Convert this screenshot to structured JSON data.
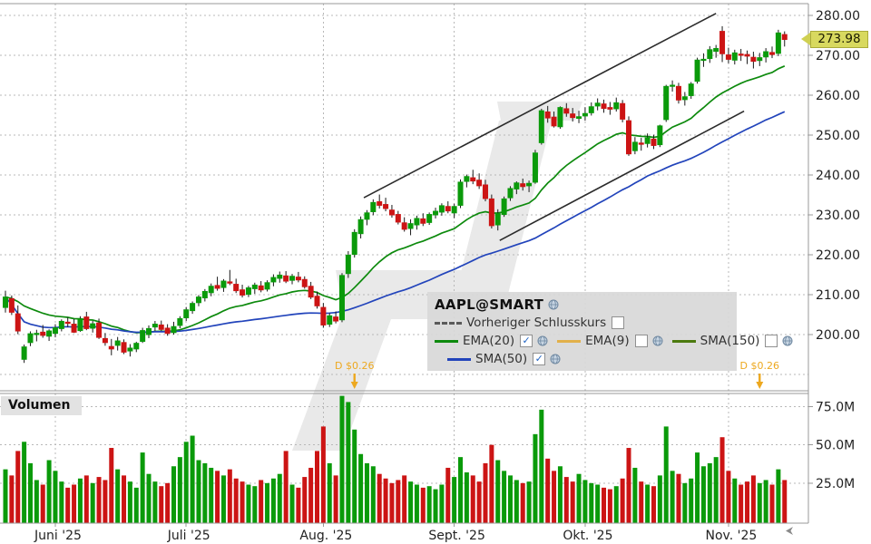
{
  "meta": {
    "symbol_title": "AAPL@SMART",
    "last_price_label": "273.98",
    "volume_panel_label": "Volumen"
  },
  "legend": {
    "title": "AAPL@SMART",
    "items": [
      {
        "label": "Vorheriger Schlusskurs",
        "checked": false,
        "color": "#5a5a5a",
        "style": "dashed"
      },
      {
        "label": "EMA(20)",
        "checked": true,
        "color": "#0d8a0d",
        "style": "solid"
      },
      {
        "label": "EMA(9)",
        "checked": false,
        "color": "#e2b04a",
        "style": "solid"
      },
      {
        "label": "SMA(150)",
        "checked": false,
        "color": "#4c7a0f",
        "style": "solid"
      },
      {
        "label": "SMA(50)",
        "checked": true,
        "color": "#2244bb",
        "style": "solid"
      }
    ]
  },
  "icons": {
    "legend_globe": "globe-icon",
    "bottom_right": "cursor-arrow-icon",
    "dividend": "down-arrow-icon"
  },
  "chart_data": {
    "type": "candlestick+volume",
    "title": "AAPL@SMART",
    "last_price": 273.98,
    "price_axis": {
      "min": 190,
      "max": 281,
      "grid": [
        190,
        200,
        210,
        220,
        230,
        240,
        250,
        260,
        270,
        280
      ],
      "labels": [
        200,
        210,
        220,
        230,
        240,
        250,
        260,
        270,
        280
      ],
      "format": "0.00"
    },
    "volume_axis": {
      "ticks_millions": [
        25,
        50,
        75
      ],
      "format": "0.0M"
    },
    "months": [
      {
        "label": "Juni '25",
        "day_index": 8
      },
      {
        "label": "Juli '25",
        "day_index": 29
      },
      {
        "label": "Aug. '25",
        "day_index": 51
      },
      {
        "label": "Sept. '25",
        "day_index": 72
      },
      {
        "label": "Okt. '25",
        "day_index": 93
      },
      {
        "label": "Nov. '25",
        "day_index": 116
      }
    ],
    "overlays": [
      {
        "name": "EMA(20)",
        "period": 20,
        "kind": "ema",
        "color": "#0d8a0d",
        "visible": true
      },
      {
        "name": "SMA(50)",
        "period": 50,
        "kind": "sma",
        "color": "#2244bb",
        "visible": true
      }
    ],
    "trendlines": [
      {
        "from": [
          57.5,
          234.3
        ],
        "to": [
          114.0,
          280.5
        ]
      },
      {
        "from": [
          79.3,
          223.6
        ],
        "to": [
          118.5,
          256.0
        ]
      }
    ],
    "dividends": [
      {
        "day_index": 56,
        "label": "D $0.26"
      },
      {
        "day_index": 121,
        "label": "D $0.26"
      }
    ],
    "colors": {
      "up": "#0a9a0a",
      "down": "#cc1414",
      "wick": "#1a1a1a",
      "trend": "#2b2b2b",
      "grid": "#b8b8b8",
      "border": "#999999",
      "dividend": "#eda81f",
      "watermark": "#e9e9e9",
      "axis_text": "#222222"
    },
    "candles_ohlcv": [
      [
        206.8,
        211.0,
        205.5,
        209.4,
        34
      ],
      [
        209.0,
        209.8,
        204.9,
        205.6,
        30
      ],
      [
        205.2,
        207.3,
        200.1,
        200.9,
        46
      ],
      [
        193.8,
        197.5,
        192.9,
        196.9,
        52
      ],
      [
        198.0,
        200.8,
        197.1,
        200.2,
        38
      ],
      [
        200.0,
        201.2,
        198.3,
        200.3,
        27
      ],
      [
        200.6,
        202.4,
        199.2,
        199.8,
        24
      ],
      [
        199.6,
        201.3,
        198.4,
        200.9,
        40
      ],
      [
        200.3,
        202.6,
        199.3,
        201.7,
        33
      ],
      [
        201.5,
        203.8,
        200.8,
        203.3,
        26
      ],
      [
        203.1,
        204.3,
        201.9,
        202.8,
        22
      ],
      [
        202.6,
        203.9,
        200.4,
        200.6,
        24
      ],
      [
        201.0,
        204.6,
        200.7,
        203.9,
        28
      ],
      [
        204.4,
        205.7,
        201.1,
        201.5,
        30
      ],
      [
        201.6,
        203.4,
        200.5,
        202.7,
        25
      ],
      [
        202.9,
        204.0,
        198.9,
        199.3,
        29
      ],
      [
        199.0,
        200.4,
        197.2,
        198.0,
        27
      ],
      [
        197.0,
        198.9,
        194.8,
        196.4,
        48
      ],
      [
        197.3,
        199.4,
        196.0,
        198.4,
        34
      ],
      [
        198.0,
        198.8,
        195.1,
        195.6,
        30
      ],
      [
        195.9,
        197.6,
        194.5,
        196.6,
        26
      ],
      [
        196.4,
        198.2,
        195.6,
        197.8,
        22
      ],
      [
        198.3,
        201.7,
        197.9,
        201.0,
        45
      ],
      [
        200.0,
        202.3,
        199.1,
        201.5,
        31
      ],
      [
        201.9,
        203.4,
        200.9,
        202.6,
        26
      ],
      [
        202.4,
        203.5,
        200.9,
        201.3,
        23
      ],
      [
        201.6,
        202.6,
        199.7,
        200.3,
        25
      ],
      [
        200.5,
        203.2,
        200.0,
        202.0,
        36
      ],
      [
        202.3,
        204.6,
        201.6,
        204.0,
        42
      ],
      [
        204.2,
        206.9,
        203.4,
        206.2,
        52
      ],
      [
        206.0,
        208.3,
        205.2,
        207.8,
        56
      ],
      [
        208.0,
        209.9,
        207.1,
        209.4,
        40
      ],
      [
        209.2,
        211.4,
        208.3,
        210.8,
        38
      ],
      [
        210.5,
        212.8,
        209.6,
        212.1,
        35
      ],
      [
        212.3,
        214.5,
        211.0,
        211.6,
        33
      ],
      [
        211.8,
        213.9,
        210.7,
        213.4,
        30
      ],
      [
        213.2,
        216.2,
        212.4,
        212.9,
        34
      ],
      [
        212.6,
        214.0,
        210.4,
        211.0,
        28
      ],
      [
        211.2,
        212.5,
        209.3,
        209.9,
        26
      ],
      [
        210.1,
        212.2,
        209.4,
        211.7,
        24
      ],
      [
        211.5,
        213.0,
        210.2,
        212.4,
        23
      ],
      [
        212.2,
        213.4,
        210.6,
        211.2,
        27
      ],
      [
        211.4,
        213.6,
        210.8,
        213.0,
        25
      ],
      [
        213.2,
        215.1,
        212.1,
        214.3,
        28
      ],
      [
        214.1,
        215.8,
        213.0,
        214.9,
        31
      ],
      [
        214.7,
        215.9,
        212.9,
        213.4,
        46
      ],
      [
        213.6,
        215.2,
        212.6,
        214.6,
        24
      ],
      [
        214.4,
        215.7,
        213.1,
        213.7,
        22
      ],
      [
        213.8,
        214.6,
        211.5,
        212.0,
        29
      ],
      [
        212.1,
        213.2,
        208.9,
        209.4,
        35
      ],
      [
        209.6,
        210.8,
        206.5,
        207.2,
        46
      ],
      [
        206.8,
        207.9,
        201.7,
        202.4,
        62
      ],
      [
        202.6,
        205.4,
        201.9,
        204.7,
        38
      ],
      [
        204.4,
        205.8,
        202.8,
        203.4,
        30
      ],
      [
        203.7,
        215.4,
        203.1,
        214.8,
        82
      ],
      [
        215.3,
        220.9,
        214.2,
        219.9,
        78
      ],
      [
        220.1,
        226.4,
        219.3,
        225.6,
        60
      ],
      [
        225.3,
        229.6,
        224.1,
        228.8,
        44
      ],
      [
        228.9,
        231.2,
        227.4,
        230.5,
        38
      ],
      [
        230.8,
        233.9,
        229.9,
        233.1,
        36
      ],
      [
        233.3,
        235.1,
        231.6,
        232.4,
        31
      ],
      [
        232.6,
        234.3,
        230.9,
        231.6,
        28
      ],
      [
        231.2,
        232.5,
        229.3,
        230.0,
        25
      ],
      [
        230.1,
        231.0,
        227.6,
        228.2,
        27
      ],
      [
        228.0,
        229.4,
        225.8,
        226.4,
        30
      ],
      [
        226.6,
        228.9,
        224.9,
        227.8,
        26
      ],
      [
        227.5,
        229.8,
        226.3,
        229.1,
        24
      ],
      [
        229.0,
        230.4,
        227.2,
        227.9,
        22
      ],
      [
        228.1,
        230.6,
        227.5,
        230.1,
        23
      ],
      [
        230.0,
        231.8,
        229.1,
        230.9,
        21
      ],
      [
        230.7,
        232.9,
        229.8,
        232.3,
        24
      ],
      [
        232.1,
        233.4,
        230.4,
        231.0,
        35
      ],
      [
        230.5,
        232.8,
        229.2,
        232.1,
        29
      ],
      [
        232.4,
        238.9,
        231.7,
        238.2,
        42
      ],
      [
        238.4,
        240.1,
        236.9,
        239.6,
        32
      ],
      [
        239.3,
        241.3,
        237.7,
        238.5,
        30
      ],
      [
        238.7,
        240.4,
        236.5,
        237.3,
        26
      ],
      [
        237.5,
        238.8,
        233.4,
        234.1,
        38
      ],
      [
        234.0,
        235.1,
        226.6,
        227.3,
        50
      ],
      [
        227.5,
        231.4,
        226.1,
        230.3,
        40
      ],
      [
        230.1,
        234.6,
        229.5,
        234.0,
        33
      ],
      [
        234.3,
        237.2,
        233.5,
        236.6,
        30
      ],
      [
        236.5,
        238.4,
        235.2,
        238.0,
        27
      ],
      [
        237.8,
        239.1,
        236.1,
        237.1,
        25
      ],
      [
        237.3,
        238.6,
        235.7,
        237.9,
        26
      ],
      [
        238.2,
        246.3,
        237.8,
        245.5,
        57
      ],
      [
        248.1,
        256.6,
        247.6,
        256.1,
        73
      ],
      [
        255.8,
        257.3,
        253.1,
        254.3,
        41
      ],
      [
        254.5,
        255.9,
        251.9,
        252.3,
        33
      ],
      [
        252.1,
        257.2,
        251.6,
        256.9,
        36
      ],
      [
        256.6,
        258.0,
        254.6,
        255.5,
        29
      ],
      [
        255.3,
        256.8,
        253.4,
        254.4,
        26
      ],
      [
        254.2,
        256.1,
        253.0,
        254.6,
        31
      ],
      [
        254.8,
        257.0,
        253.6,
        255.4,
        27
      ],
      [
        255.6,
        258.2,
        254.9,
        257.1,
        25
      ],
      [
        257.3,
        259.2,
        256.2,
        258.0,
        24
      ],
      [
        257.8,
        258.9,
        255.6,
        256.7,
        22
      ],
      [
        256.9,
        258.3,
        255.1,
        256.5,
        21
      ],
      [
        256.6,
        259.4,
        255.9,
        258.1,
        23
      ],
      [
        257.9,
        258.8,
        253.2,
        254.0,
        28
      ],
      [
        253.6,
        254.7,
        244.8,
        245.3,
        48
      ],
      [
        246.1,
        249.5,
        245.2,
        248.2,
        35
      ],
      [
        248.0,
        249.3,
        246.1,
        247.7,
        26
      ],
      [
        247.9,
        250.4,
        246.9,
        249.3,
        24
      ],
      [
        249.0,
        250.1,
        246.5,
        247.4,
        23
      ],
      [
        247.6,
        252.6,
        247.0,
        252.3,
        30
      ],
      [
        253.9,
        262.6,
        253.3,
        262.2,
        62
      ],
      [
        262.4,
        263.7,
        260.9,
        262.5,
        33
      ],
      [
        262.2,
        263.1,
        257.9,
        258.8,
        31
      ],
      [
        258.9,
        260.8,
        257.4,
        259.6,
        25
      ],
      [
        259.9,
        263.3,
        259.1,
        262.8,
        28
      ],
      [
        263.5,
        269.4,
        262.9,
        268.8,
        45
      ],
      [
        268.9,
        270.5,
        267.1,
        269.0,
        36
      ],
      [
        269.2,
        272.3,
        268.1,
        271.4,
        38
      ],
      [
        271.0,
        272.6,
        269.4,
        271.7,
        42
      ],
      [
        276.0,
        277.3,
        268.3,
        270.4,
        55
      ],
      [
        270.1,
        271.9,
        268.0,
        269.0,
        33
      ],
      [
        268.8,
        271.4,
        267.7,
        270.6,
        28
      ],
      [
        270.3,
        271.6,
        268.6,
        270.0,
        24
      ],
      [
        270.2,
        271.2,
        267.8,
        269.8,
        26
      ],
      [
        269.5,
        270.9,
        266.7,
        268.5,
        30
      ],
      [
        268.7,
        270.6,
        267.3,
        269.4,
        25
      ],
      [
        269.6,
        271.8,
        268.2,
        270.9,
        27
      ],
      [
        270.7,
        272.2,
        269.3,
        270.2,
        24
      ],
      [
        270.5,
        276.4,
        269.8,
        275.6,
        34
      ],
      [
        275.2,
        276.0,
        272.2,
        273.98,
        27
      ]
    ]
  }
}
